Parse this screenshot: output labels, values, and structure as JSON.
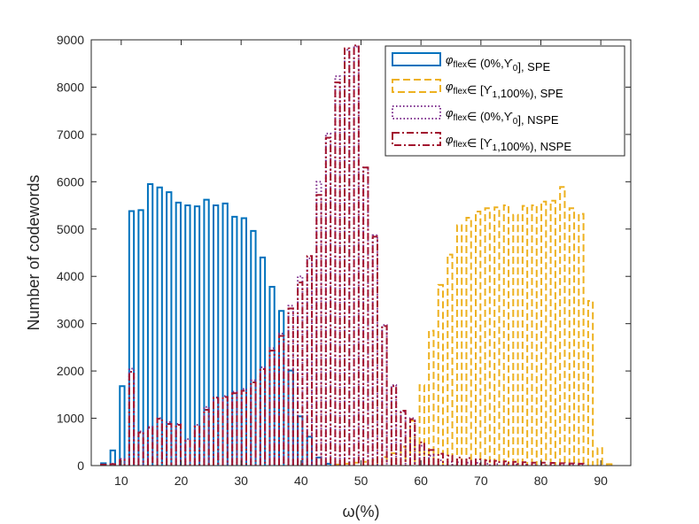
{
  "chart_data": {
    "type": "bar",
    "subtype": "overlaid-histogram",
    "xlabel": "ω(%)",
    "ylabel": "Number of codewords",
    "xlim": [
      5,
      95
    ],
    "ylim": [
      0,
      9000
    ],
    "xticks": [
      10,
      20,
      30,
      40,
      50,
      60,
      70,
      80,
      90
    ],
    "yticks": [
      0,
      1000,
      2000,
      3000,
      4000,
      5000,
      6000,
      7000,
      8000,
      9000
    ],
    "bin_width": 1.5625,
    "legend_position": "top-right",
    "series": [
      {
        "name": "spe_low",
        "legend": {
          "sym": "φ",
          "sub": "flex",
          "rest": "∈ (0%,ϒ",
          "sub2": "0",
          "tail": "], SPE"
        },
        "color": "#0072BD",
        "line_style": "solid",
        "x": [
          7.03,
          8.59,
          10.16,
          11.72,
          13.28,
          14.84,
          16.41,
          17.97,
          19.53,
          21.09,
          22.66,
          24.22,
          25.78,
          27.34,
          28.91,
          30.47,
          32.03,
          33.59,
          35.16,
          36.72,
          38.28,
          39.84,
          41.41,
          42.97,
          44.53,
          46.09
        ],
        "values": [
          50,
          320,
          1680,
          5380,
          5400,
          5950,
          5880,
          5780,
          5560,
          5500,
          5480,
          5620,
          5500,
          5540,
          5260,
          5230,
          4960,
          4400,
          3780,
          3270,
          2010,
          1040,
          610,
          170,
          40,
          20
        ]
      },
      {
        "name": "spe_high",
        "legend": {
          "sym": "φ",
          "sub": "flex",
          "rest": "∈ [ϒ",
          "sub2": "1",
          "tail": ",100%), SPE"
        },
        "color": "#EDB120",
        "line_style": "dashed",
        "x": [
          46.09,
          47.66,
          49.22,
          50.78,
          52.34,
          53.91,
          55.47,
          57.03,
          58.59,
          60.16,
          61.72,
          63.28,
          64.84,
          66.41,
          67.97,
          69.53,
          71.09,
          72.66,
          74.22,
          75.78,
          77.34,
          78.91,
          80.47,
          82.03,
          83.59,
          85.16,
          86.72,
          88.28,
          89.84,
          91.41
        ],
        "values": [
          20,
          40,
          60,
          80,
          120,
          180,
          260,
          400,
          950,
          1700,
          2850,
          3820,
          4460,
          5080,
          5240,
          5370,
          5440,
          5460,
          5500,
          5300,
          5490,
          5500,
          5580,
          5600,
          5890,
          5440,
          5320,
          3480,
          370,
          30
        ]
      },
      {
        "name": "nspe_low",
        "legend": {
          "sym": "φ",
          "sub": "flex",
          "rest": "∈ (0%,ϒ",
          "sub2": "0",
          "tail": "], NSPE"
        },
        "color": "#7E2F8E",
        "line_style": "dotted",
        "x": [
          7.03,
          8.59,
          10.16,
          11.72,
          13.28,
          14.84,
          16.41,
          17.97,
          19.53,
          21.09,
          22.66,
          24.22,
          25.78,
          27.34,
          28.91,
          30.47,
          32.03,
          33.59,
          35.16,
          36.72,
          38.28,
          39.84,
          41.41,
          42.97,
          44.53,
          46.09,
          47.66,
          49.22,
          50.78,
          52.34,
          53.91,
          55.47,
          57.03,
          58.59,
          60.16,
          61.72,
          63.28,
          64.84,
          66.41,
          67.97,
          69.53,
          71.09,
          72.66,
          74.22,
          75.78,
          77.34,
          78.91,
          80.47,
          82.03,
          83.59,
          85.16,
          86.72
        ],
        "values": [
          20,
          40,
          140,
          2050,
          720,
          820,
          1000,
          920,
          880,
          560,
          860,
          1240,
          1440,
          1470,
          1560,
          1620,
          1800,
          2080,
          2480,
          2790,
          3380,
          4000,
          4380,
          6000,
          7020,
          8230,
          8790,
          8860,
          6300,
          4870,
          2970,
          1700,
          1140,
          1000,
          420,
          210,
          110,
          80,
          70,
          60,
          55,
          40,
          30,
          25,
          20,
          15,
          15,
          10,
          10,
          10,
          10,
          10
        ]
      },
      {
        "name": "nspe_high",
        "legend": {
          "sym": "φ",
          "sub": "flex",
          "rest": "∈ [ϒ",
          "sub2": "1",
          "tail": ",100%), NSPE"
        },
        "color": "#A2142F",
        "line_style": "dashdot",
        "x": [
          7.03,
          8.59,
          10.16,
          11.72,
          13.28,
          14.84,
          16.41,
          17.97,
          19.53,
          21.09,
          22.66,
          24.22,
          25.78,
          27.34,
          28.91,
          30.47,
          32.03,
          33.59,
          35.16,
          36.72,
          38.28,
          39.84,
          41.41,
          42.97,
          44.53,
          46.09,
          47.66,
          49.22,
          50.78,
          52.34,
          53.91,
          55.47,
          57.03,
          58.59,
          60.16,
          61.72,
          63.28,
          64.84,
          66.41,
          67.97,
          69.53,
          71.09,
          72.66,
          74.22,
          75.78,
          77.34,
          78.91,
          80.47,
          82.03,
          83.59,
          85.16,
          86.72
        ],
        "values": [
          20,
          30,
          120,
          1980,
          700,
          800,
          990,
          880,
          860,
          520,
          820,
          1180,
          1430,
          1450,
          1530,
          1580,
          1760,
          2040,
          2430,
          2740,
          3320,
          3870,
          4430,
          5720,
          6930,
          8100,
          8820,
          8880,
          6300,
          4840,
          2950,
          1680,
          1160,
          980,
          490,
          330,
          250,
          210,
          170,
          160,
          130,
          110,
          100,
          90,
          80,
          70,
          60,
          60,
          55,
          50,
          45,
          40
        ]
      }
    ]
  }
}
